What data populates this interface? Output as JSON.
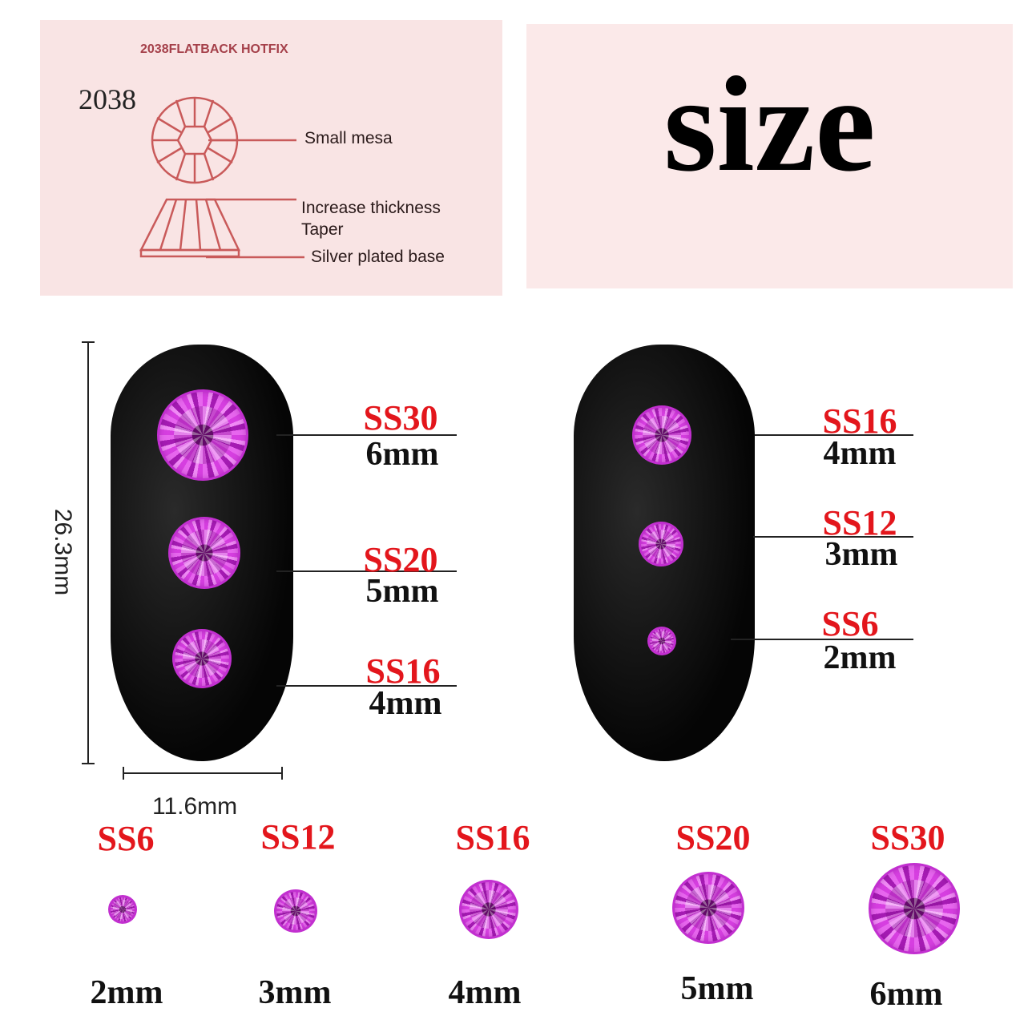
{
  "diagram_panel": {
    "heading": "2038FLATBACK HOTFIX",
    "model": "2038",
    "labels": [
      "Small mesa",
      "Increase thickness",
      "Taper",
      "Silver plated base"
    ]
  },
  "title": "size",
  "dimensions": {
    "height": "26.3mm",
    "width": "11.6mm"
  },
  "left_nail": [
    {
      "code": "SS30",
      "size": "6mm"
    },
    {
      "code": "SS20",
      "size": "5mm"
    },
    {
      "code": "SS16",
      "size": "4mm"
    }
  ],
  "right_nail": [
    {
      "code": "SS16",
      "size": "4mm"
    },
    {
      "code": "SS12",
      "size": "3mm"
    },
    {
      "code": "SS6",
      "size": "2mm"
    }
  ],
  "bottom_row": [
    {
      "code": "SS6",
      "size": "2mm"
    },
    {
      "code": "SS12",
      "size": "3mm"
    },
    {
      "code": "SS16",
      "size": "4mm"
    },
    {
      "code": "SS20",
      "size": "5mm"
    },
    {
      "code": "SS30",
      "size": "6mm"
    }
  ],
  "colors": {
    "label_red": "#e3161c",
    "gem": "#d63fe0",
    "panel": "#f9e4e4",
    "diagram_line": "#c95a5a"
  }
}
